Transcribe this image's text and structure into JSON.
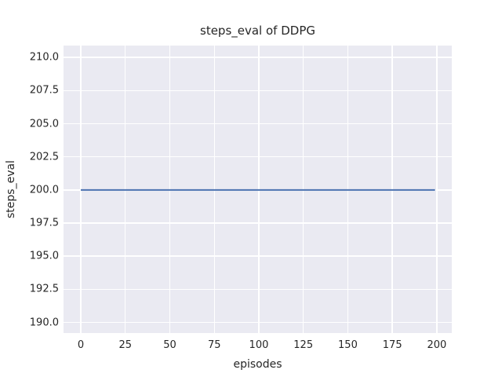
{
  "chart_data": {
    "type": "line",
    "title": "steps_eval of DDPG",
    "xlabel": "episodes",
    "ylabel": "steps_eval",
    "xlim": [
      -9.7,
      208.4
    ],
    "ylim": [
      189.2,
      210.9
    ],
    "grid": true,
    "legend": "none",
    "xticks": {
      "values": [
        0,
        25,
        50,
        75,
        100,
        125,
        150,
        175,
        200
      ],
      "labels": [
        "0",
        "25",
        "50",
        "75",
        "100",
        "125",
        "150",
        "175",
        "200"
      ]
    },
    "yticks": {
      "values": [
        190.0,
        192.5,
        195.0,
        197.5,
        200.0,
        202.5,
        205.0,
        207.5,
        210.0
      ],
      "labels": [
        "190.0",
        "192.5",
        "195.0",
        "197.5",
        "200.0",
        "202.5",
        "205.0",
        "207.5",
        "210.0"
      ]
    },
    "series": [
      {
        "name": "DDPG steps_eval",
        "x": [
          0,
          199
        ],
        "y": [
          200,
          200
        ],
        "note": "constant value 200 for every episode 0 through 199",
        "color": "#4c72b0",
        "linewidth": 2
      }
    ],
    "colors": {
      "figure_background": "#ffffff",
      "plot_background": "#eaeaf2",
      "gridline": "#ffffff",
      "text": "#262626",
      "line": "#4c72b0"
    }
  }
}
